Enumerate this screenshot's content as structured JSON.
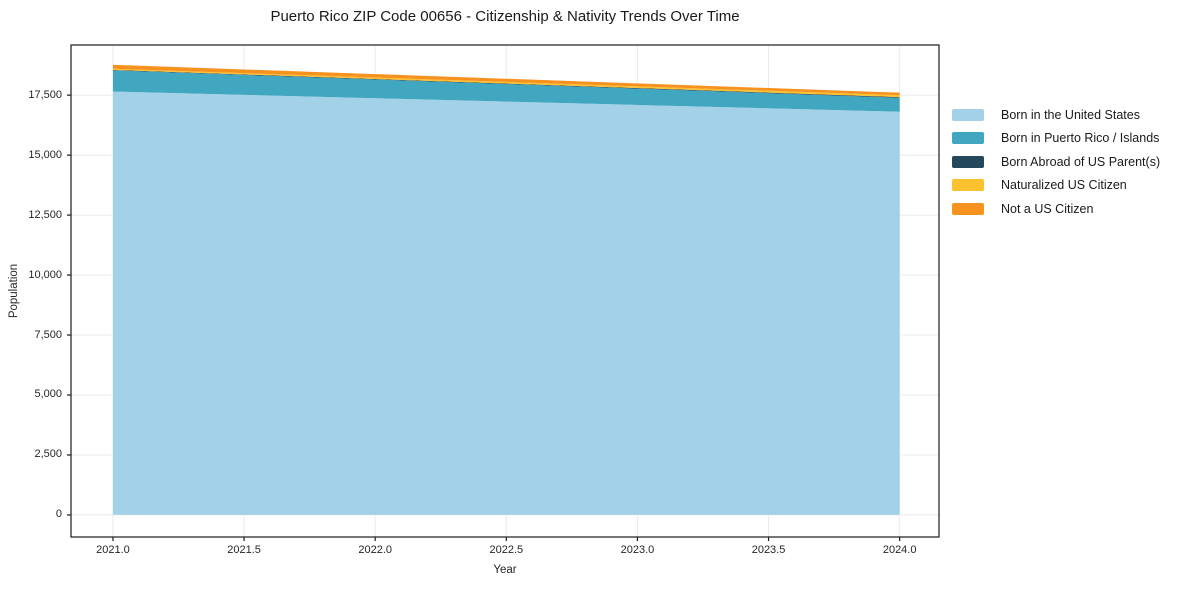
{
  "title": "Puerto Rico ZIP Code 00656 - Citizenship & Nativity Trends Over Time",
  "chart_data": {
    "type": "area",
    "stacked": true,
    "title": "Puerto Rico ZIP Code 00656 - Citizenship & Nativity Trends Over Time",
    "xlabel": "Year",
    "ylabel": "Population",
    "x": [
      2021,
      2022,
      2023,
      2024
    ],
    "series": [
      {
        "name": "Born in the United States",
        "color": "#a3d2e8",
        "values": [
          17650,
          17370,
          17090,
          16810
        ]
      },
      {
        "name": "Born in Puerto Rico / Islands",
        "color": "#41a6bf",
        "values": [
          880,
          780,
          680,
          580
        ]
      },
      {
        "name": "Born Abroad of US Parent(s)",
        "color": "#26485c",
        "values": [
          20,
          23,
          25,
          28
        ]
      },
      {
        "name": "Naturalized US Citizen",
        "color": "#fcc12f",
        "values": [
          50,
          60,
          70,
          80
        ]
      },
      {
        "name": "Not a US Citizen",
        "color": "#f7921e",
        "values": [
          165,
          145,
          125,
          105
        ]
      }
    ],
    "xlim": [
      2020.84,
      2024.15
    ],
    "ylim": [
      -920,
      19590
    ],
    "xticks": {
      "values": [
        2021.0,
        2021.5,
        2022.0,
        2022.5,
        2023.0,
        2023.5,
        2024.0
      ],
      "labels": [
        "2021.0",
        "2021.5",
        "2022.0",
        "2022.5",
        "2023.0",
        "2023.5",
        "2024.0"
      ]
    },
    "yticks": {
      "values": [
        0,
        2500,
        5000,
        7500,
        10000,
        12500,
        15000,
        17500
      ],
      "labels": [
        "0",
        "2,500",
        "5,000",
        "7,500",
        "10,000",
        "12,500",
        "15,000",
        "17,500"
      ]
    },
    "grid": true,
    "legend_position": "right",
    "colors": {
      "spine": "#1a1a1a",
      "grid": "#ebebeb",
      "text": "#262626",
      "background": "#ffffff"
    }
  }
}
